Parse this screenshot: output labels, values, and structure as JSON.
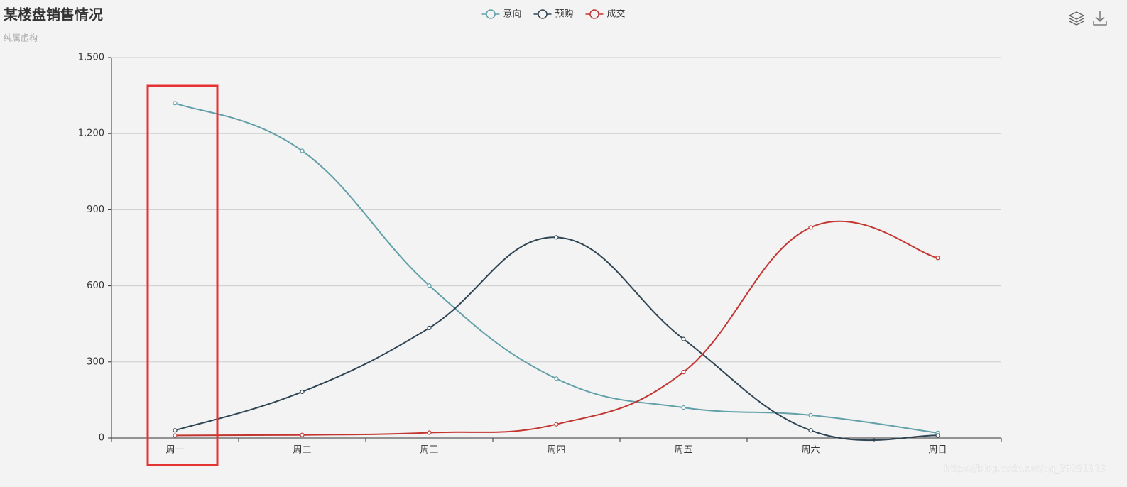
{
  "chart_data": {
    "type": "line",
    "title": "某楼盘销售情况",
    "subtitle": "纯属虚构",
    "categories": [
      "周一",
      "周二",
      "周三",
      "周四",
      "周五",
      "周六",
      "周日"
    ],
    "series": [
      {
        "name": "意向",
        "color": "#61a0a8",
        "values": [
          1320,
          1132,
          601,
          234,
          120,
          90,
          20
        ]
      },
      {
        "name": "预购",
        "color": "#2f4554",
        "values": [
          30,
          182,
          434,
          791,
          390,
          30,
          10
        ]
      },
      {
        "name": "成交",
        "color": "#c23531",
        "values": [
          10,
          12,
          21,
          54,
          260,
          830,
          710
        ]
      }
    ],
    "ylim": [
      0,
      1500
    ],
    "yticks": [
      0,
      300,
      600,
      900,
      {
        "value": 1200,
        "label": "1,200"
      },
      {
        "value": 1500,
        "label": "1,500"
      }
    ],
    "grid": true,
    "smooth": true,
    "watermark": "https://blog.csdn.net/qq_39291919"
  }
}
